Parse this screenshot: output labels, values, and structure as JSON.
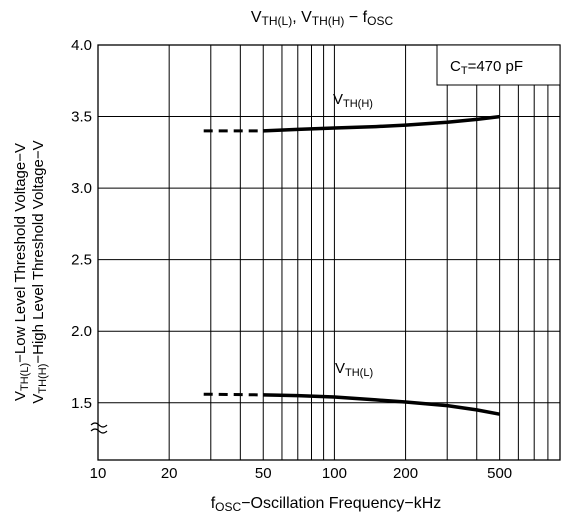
{
  "chart_data": {
    "type": "line",
    "title": {
      "main": "V",
      "sub1": "TH(L)",
      "mid": ", V",
      "sub2": "TH(H)",
      "dash": " − f",
      "sub3": "OSC"
    },
    "xlabel": {
      "main": "f",
      "sub": "OSC",
      "rest": "−Oscillation Frequency−kHz"
    },
    "ylabel": {
      "line1": {
        "main": "V",
        "sub": "TH(L)",
        "rest": "−Low Level Threshold Voltage−V"
      },
      "line2": {
        "main": "V",
        "sub": "TH(H)",
        "rest": "−High Level Threshold Voltage−V"
      }
    },
    "x_scale": "log",
    "xlim": [
      10,
      900
    ],
    "ylim": [
      1.1,
      4.0
    ],
    "y_axis_break": true,
    "x_ticks": [
      {
        "value": 10,
        "label": "10"
      },
      {
        "value": 20,
        "label": "20"
      },
      {
        "value": 50,
        "label": "50"
      },
      {
        "value": 100,
        "label": "100"
      },
      {
        "value": 200,
        "label": "200"
      },
      {
        "value": 500,
        "label": "500"
      }
    ],
    "y_ticks": [
      {
        "value": 1.5,
        "label": "1.5"
      },
      {
        "value": 2.0,
        "label": "2.0"
      },
      {
        "value": 2.5,
        "label": "2.5"
      },
      {
        "value": 3.0,
        "label": "3.0"
      },
      {
        "value": 3.5,
        "label": "3.5"
      },
      {
        "value": 4.0,
        "label": "4.0"
      }
    ],
    "grid": true,
    "condition": {
      "main": "C",
      "sub": "T",
      "rest": "=470  pF"
    },
    "series": [
      {
        "name": "V",
        "name_sub": "TH(H)",
        "dashed_points": [
          [
            28,
            3.4
          ],
          [
            50,
            3.4
          ]
        ],
        "solid_points": [
          [
            50,
            3.4
          ],
          [
            70,
            3.41
          ],
          [
            100,
            3.42
          ],
          [
            150,
            3.43
          ],
          [
            200,
            3.44
          ],
          [
            300,
            3.46
          ],
          [
            400,
            3.48
          ],
          [
            500,
            3.5
          ]
        ]
      },
      {
        "name": "V",
        "name_sub": "TH(L)",
        "dashed_points": [
          [
            28,
            1.56
          ],
          [
            50,
            1.555
          ]
        ],
        "solid_points": [
          [
            50,
            1.555
          ],
          [
            70,
            1.55
          ],
          [
            100,
            1.54
          ],
          [
            150,
            1.52
          ],
          [
            200,
            1.505
          ],
          [
            300,
            1.48
          ],
          [
            400,
            1.45
          ],
          [
            500,
            1.42
          ]
        ]
      }
    ]
  }
}
